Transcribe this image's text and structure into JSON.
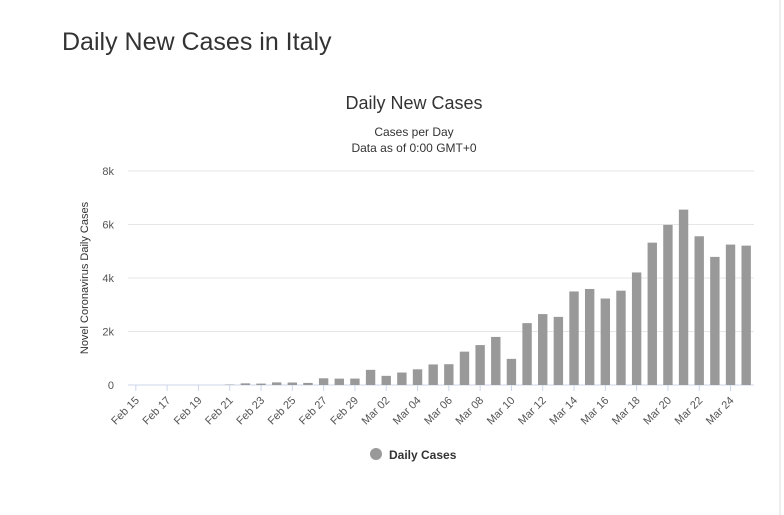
{
  "page_title": "Daily New Cases in Italy",
  "chart_data": {
    "type": "bar",
    "title": "Daily New Cases",
    "subtitle": [
      "Cases per Day",
      "Data as of 0:00 GMT+0"
    ],
    "y_label": "Novel Coronavirus Daily Cases",
    "categories": [
      "Feb 15",
      null,
      "Feb 17",
      null,
      "Feb 19",
      null,
      "Feb 21",
      null,
      "Feb 23",
      null,
      "Feb 25",
      null,
      "Feb 27",
      null,
      "Feb 29",
      null,
      "Mar 02",
      null,
      "Mar 04",
      null,
      "Mar 06",
      null,
      "Mar 08",
      null,
      "Mar 10",
      null,
      "Mar 12",
      null,
      "Mar 14",
      null,
      "Mar 16",
      null,
      "Mar 18",
      null,
      "Mar 20",
      null,
      "Mar 22",
      null,
      "Mar 24",
      null
    ],
    "series": [
      {
        "name": "Daily Cases",
        "color": "#999999",
        "values": [
          0,
          0,
          0,
          0,
          0,
          0,
          17,
          62,
          53,
          97,
          93,
          78,
          250,
          238,
          240,
          566,
          342,
          466,
          587,
          769,
          778,
          1247,
          1492,
          1797,
          977,
          2313,
          2651,
          2547,
          3497,
          3590,
          3233,
          3526,
          4207,
          5322,
          5986,
          6557,
          5560,
          4789,
          5249,
          5210
        ]
      }
    ],
    "ylim": [
      0,
      8000
    ],
    "yticks": [
      0,
      {
        "value": 2000,
        "label": "2k"
      },
      {
        "value": 4000,
        "label": "4k"
      },
      {
        "value": 6000,
        "label": "6k"
      },
      {
        "value": 8000,
        "label": "8k"
      }
    ],
    "grid": true,
    "legend": "bottom"
  }
}
